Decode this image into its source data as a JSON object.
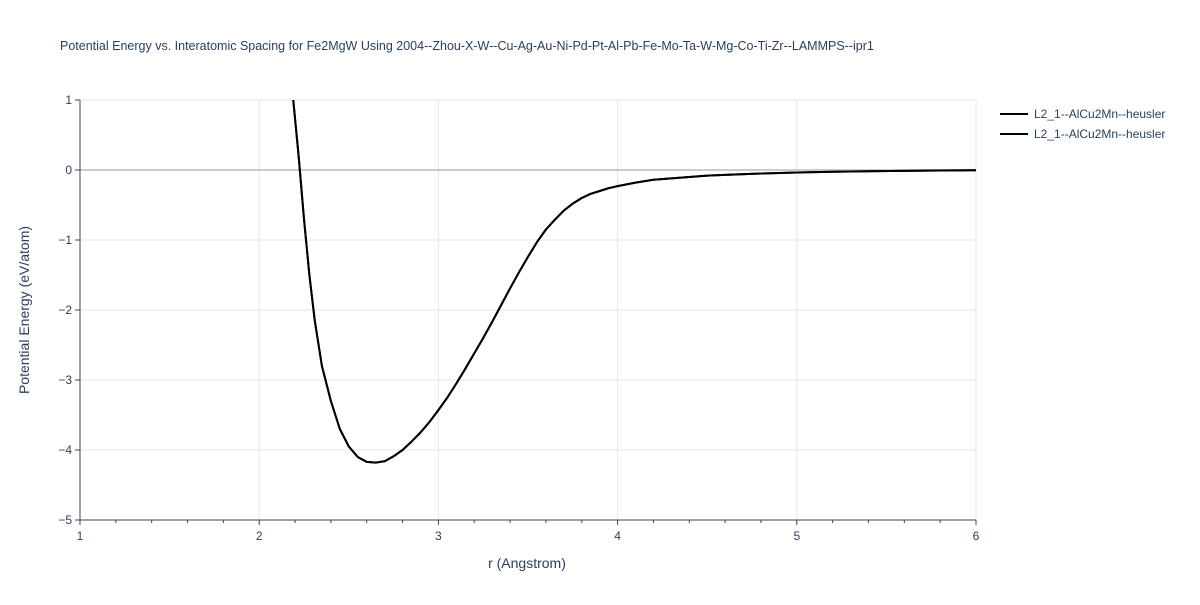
{
  "chart_data": {
    "type": "line",
    "title": "Potential Energy vs. Interatomic Spacing for Fe2MgW Using 2004--Zhou-X-W--Cu-Ag-Au-Ni-Pd-Pt-Al-Pb-Fe-Mo-Ta-W-Mg-Co-Ti-Zr--LAMMPS--ipr1",
    "xlabel": "r (Angstrom)",
    "ylabel": "Potential Energy (eV/atom)",
    "xlim": [
      1,
      6
    ],
    "ylim": [
      -5,
      1
    ],
    "x_ticks": [
      1,
      2,
      3,
      4,
      5,
      6
    ],
    "x_tick_labels": [
      "1",
      "2",
      "3",
      "4",
      "5",
      "6"
    ],
    "y_ticks": [
      -5,
      -4,
      -3,
      -2,
      -1,
      0,
      1
    ],
    "y_tick_labels": [
      "−5",
      "−4",
      "−3",
      "−2",
      "−1",
      "0",
      "1"
    ],
    "grid": true,
    "legend_position": "top-right, outside plot",
    "series": [
      {
        "name": "L2_1--AlCu2Mn--heusler",
        "color": "#000000",
        "x": [
          2.19,
          2.22,
          2.25,
          2.28,
          2.31,
          2.35,
          2.4,
          2.45,
          2.5,
          2.55,
          2.6,
          2.65,
          2.7,
          2.75,
          2.8,
          2.85,
          2.9,
          2.95,
          3.0,
          3.05,
          3.1,
          3.15,
          3.2,
          3.25,
          3.3,
          3.35,
          3.4,
          3.45,
          3.5,
          3.55,
          3.6,
          3.65,
          3.7,
          3.75,
          3.8,
          3.85,
          3.9,
          3.95,
          4.0,
          4.1,
          4.2,
          4.3,
          4.4,
          4.5,
          4.6,
          4.8,
          5.0,
          5.2,
          5.4,
          5.6,
          5.8,
          6.0
        ],
        "y": [
          1.0,
          0.2,
          -0.7,
          -1.5,
          -2.15,
          -2.8,
          -3.3,
          -3.7,
          -3.95,
          -4.1,
          -4.17,
          -4.18,
          -4.16,
          -4.09,
          -4.0,
          -3.88,
          -3.75,
          -3.6,
          -3.43,
          -3.25,
          -3.05,
          -2.84,
          -2.62,
          -2.4,
          -2.17,
          -1.93,
          -1.69,
          -1.46,
          -1.24,
          -1.03,
          -0.85,
          -0.71,
          -0.58,
          -0.48,
          -0.4,
          -0.34,
          -0.3,
          -0.26,
          -0.23,
          -0.18,
          -0.14,
          -0.12,
          -0.1,
          -0.08,
          -0.07,
          -0.05,
          -0.035,
          -0.025,
          -0.018,
          -0.012,
          -0.007,
          -0.003
        ]
      },
      {
        "name": "L2_1--AlCu2Mn--heusler",
        "color": "#000000",
        "x": [
          2.19,
          2.22,
          2.25,
          2.28,
          2.31,
          2.35,
          2.4,
          2.45,
          2.5,
          2.55,
          2.6,
          2.65,
          2.7,
          2.75,
          2.8,
          2.85,
          2.9,
          2.95,
          3.0,
          3.05,
          3.1,
          3.15,
          3.2,
          3.25,
          3.3,
          3.35,
          3.4,
          3.45,
          3.5,
          3.55,
          3.6,
          3.65,
          3.7,
          3.75,
          3.8,
          3.85,
          3.9,
          3.95,
          4.0,
          4.1,
          4.2,
          4.3,
          4.4,
          4.5,
          4.6,
          4.8,
          5.0,
          5.2,
          5.4,
          5.6,
          5.8,
          6.0
        ],
        "y": [
          1.0,
          0.2,
          -0.7,
          -1.5,
          -2.15,
          -2.8,
          -3.3,
          -3.7,
          -3.95,
          -4.1,
          -4.17,
          -4.18,
          -4.16,
          -4.09,
          -4.0,
          -3.88,
          -3.75,
          -3.6,
          -3.43,
          -3.25,
          -3.05,
          -2.84,
          -2.62,
          -2.4,
          -2.17,
          -1.93,
          -1.69,
          -1.46,
          -1.24,
          -1.03,
          -0.85,
          -0.71,
          -0.58,
          -0.48,
          -0.4,
          -0.34,
          -0.3,
          -0.26,
          -0.23,
          -0.18,
          -0.14,
          -0.12,
          -0.1,
          -0.08,
          -0.07,
          -0.05,
          -0.035,
          -0.025,
          -0.018,
          -0.012,
          -0.007,
          -0.003
        ]
      }
    ]
  }
}
